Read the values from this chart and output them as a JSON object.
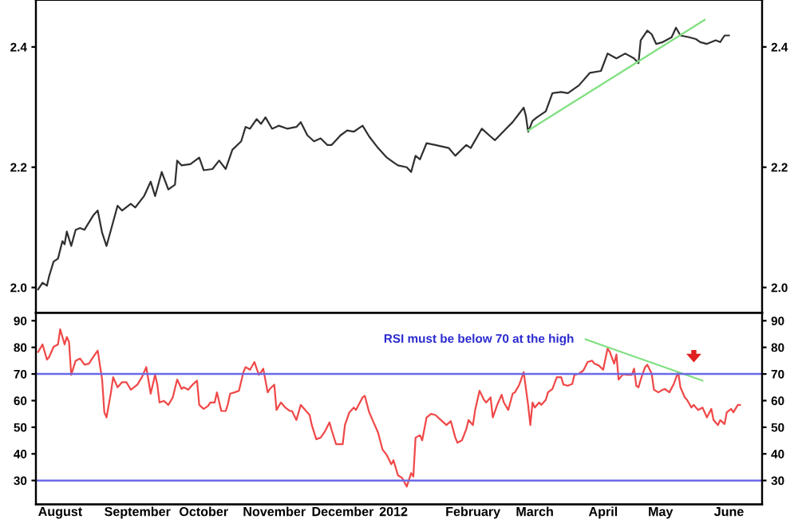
{
  "chart_data": [
    {
      "type": "line",
      "tick_labels": "y",
      "legend": false,
      "grid": false,
      "xlim": [
        "2011-07-30",
        "2012-06-23"
      ],
      "ylim": [
        1.958,
        2.478
      ],
      "yticks": [
        {
          "value": 2.0,
          "label": "2.0"
        },
        {
          "value": 2.2,
          "label": "2.2"
        },
        {
          "value": 2.4,
          "label": "2.4"
        }
      ],
      "y2lim": [
        1.958,
        2.478
      ],
      "y2ticks": [
        {
          "value": 2.0,
          "label": "2.0"
        },
        {
          "value": 2.2,
          "label": "2.2"
        },
        {
          "value": 2.4,
          "label": "2.4"
        }
      ],
      "series": [
        {
          "color": "#303030",
          "x": [
            "2011-07-31",
            "2011-08-02",
            "2011-08-04",
            "2011-08-05",
            "2011-08-07",
            "2011-08-09",
            "2011-08-11",
            "2011-08-12",
            "2011-08-13",
            "2011-08-15",
            "2011-08-17",
            "2011-08-19",
            "2011-08-21",
            "2011-08-25",
            "2011-08-27",
            "2011-08-29",
            "2011-08-31",
            "2011-09-02",
            "2011-09-05",
            "2011-09-07",
            "2011-09-11",
            "2011-09-13",
            "2011-09-17",
            "2011-09-20",
            "2011-09-22",
            "2011-09-25",
            "2011-09-28",
            "2011-10-01",
            "2011-10-02",
            "2011-10-04",
            "2011-10-08",
            "2011-10-12",
            "2011-10-14",
            "2011-10-18",
            "2011-10-21",
            "2011-10-24",
            "2011-10-27",
            "2011-10-31",
            "2011-11-02",
            "2011-11-04",
            "2011-11-07",
            "2011-11-09",
            "2011-11-11",
            "2011-11-14",
            "2011-11-17",
            "2011-11-21",
            "2011-11-25",
            "2011-11-27",
            "2011-11-30",
            "2011-12-03",
            "2011-12-06",
            "2011-12-09",
            "2011-12-11",
            "2011-12-15",
            "2011-12-18",
            "2011-12-21",
            "2011-12-25",
            "2011-12-28",
            "2012-01-01",
            "2012-01-05",
            "2012-01-08",
            "2012-01-10",
            "2012-01-14",
            "2012-01-16",
            "2012-01-18",
            "2012-01-20",
            "2012-01-23",
            "2012-01-27",
            "2012-02-02",
            "2012-02-05",
            "2012-02-10",
            "2012-02-12",
            "2012-02-17",
            "2012-02-21",
            "2012-02-23",
            "2012-02-28",
            "2012-03-02",
            "2012-03-07",
            "2012-03-08",
            "2012-03-09",
            "2012-03-11",
            "2012-03-13",
            "2012-03-17",
            "2012-03-20",
            "2012-03-24",
            "2012-03-27",
            "2012-04-01",
            "2012-04-06",
            "2012-04-11",
            "2012-04-14",
            "2012-04-18",
            "2012-04-22",
            "2012-04-26",
            "2012-04-28",
            "2012-04-29",
            "2012-05-02",
            "2012-05-04",
            "2012-05-06",
            "2012-05-09",
            "2012-05-13",
            "2012-05-15",
            "2012-05-17",
            "2012-05-21",
            "2012-05-24",
            "2012-05-26",
            "2012-05-29",
            "2012-06-02",
            "2012-06-04",
            "2012-06-06",
            "2012-06-08"
          ],
          "values": [
            1.997,
            2.008,
            2.003,
            2.019,
            2.043,
            2.048,
            2.077,
            2.072,
            2.093,
            2.069,
            2.096,
            2.099,
            2.096,
            2.12,
            2.128,
            2.091,
            2.069,
            2.096,
            2.136,
            2.128,
            2.139,
            2.133,
            2.152,
            2.176,
            2.152,
            2.192,
            2.163,
            2.171,
            2.211,
            2.203,
            2.205,
            2.216,
            2.195,
            2.197,
            2.211,
            2.197,
            2.229,
            2.243,
            2.267,
            2.264,
            2.28,
            2.272,
            2.283,
            2.264,
            2.269,
            2.264,
            2.267,
            2.275,
            2.253,
            2.243,
            2.248,
            2.237,
            2.237,
            2.253,
            2.261,
            2.259,
            2.269,
            2.251,
            2.232,
            2.216,
            2.208,
            2.203,
            2.2,
            2.192,
            2.219,
            2.213,
            2.24,
            2.237,
            2.232,
            2.219,
            2.237,
            2.232,
            2.264,
            2.251,
            2.245,
            2.264,
            2.275,
            2.299,
            2.285,
            2.259,
            2.277,
            2.283,
            2.293,
            2.323,
            2.325,
            2.323,
            2.336,
            2.357,
            2.36,
            2.389,
            2.381,
            2.389,
            2.381,
            2.373,
            2.411,
            2.427,
            2.421,
            2.405,
            2.408,
            2.416,
            2.432,
            2.419,
            2.416,
            2.413,
            2.408,
            2.405,
            2.411,
            2.408,
            2.419,
            2.419
          ]
        },
        {
          "color": "#80e080",
          "x": [
            "2012-03-09",
            "2012-05-28"
          ],
          "values": [
            2.261,
            2.445
          ]
        }
      ]
    },
    {
      "type": "line",
      "legend": false,
      "grid": false,
      "xlim": [
        "2011-07-30",
        "2012-06-23"
      ],
      "xticks": [
        {
          "value": "2011-08-10",
          "label": "August"
        },
        {
          "value": "2011-09-14",
          "label": "September"
        },
        {
          "value": "2011-10-14",
          "label": "October"
        },
        {
          "value": "2011-11-15",
          "label": "November"
        },
        {
          "value": "2011-12-16",
          "label": "December"
        },
        {
          "value": "2012-01-08",
          "label": "2012"
        },
        {
          "value": "2012-02-13",
          "label": "February"
        },
        {
          "value": "2012-03-12",
          "label": "March"
        },
        {
          "value": "2012-04-12",
          "label": "April"
        },
        {
          "value": "2012-05-08",
          "label": "May"
        },
        {
          "value": "2012-06-08",
          "label": "June"
        }
      ],
      "ylim": [
        21,
        93
      ],
      "yticks": [
        30,
        40,
        50,
        60,
        70,
        80,
        90
      ],
      "y2lim": [
        21,
        93
      ],
      "y2ticks": [
        30,
        40,
        50,
        60,
        70,
        80,
        90
      ],
      "ref_lines": [
        {
          "axis": "y",
          "value": 70,
          "color": "#6a6ae8"
        },
        {
          "axis": "y",
          "value": 30,
          "color": "#6a6ae8"
        }
      ],
      "annotations": [
        "RSI must be below 70 at the high"
      ],
      "series": [
        {
          "color": "#f04848",
          "x": [
            "2011-07-31",
            "2011-08-02",
            "2011-08-04",
            "2011-08-05",
            "2011-08-07",
            "2011-08-09",
            "2011-08-10",
            "2011-08-12",
            "2011-08-13",
            "2011-08-14",
            "2011-08-15",
            "2011-08-17",
            "2011-08-19",
            "2011-08-21",
            "2011-08-23",
            "2011-08-25",
            "2011-08-27",
            "2011-08-29",
            "2011-08-30",
            "2011-08-31",
            "2011-09-02",
            "2011-09-03",
            "2011-09-05",
            "2011-09-07",
            "2011-09-09",
            "2011-09-11",
            "2011-09-14",
            "2011-09-16",
            "2011-09-18",
            "2011-09-20",
            "2011-09-22",
            "2011-09-23",
            "2011-09-24",
            "2011-09-26",
            "2011-09-28",
            "2011-09-30",
            "2011-10-02",
            "2011-10-04",
            "2011-10-05",
            "2011-10-07",
            "2011-10-09",
            "2011-10-11",
            "2011-10-12",
            "2011-10-14",
            "2011-10-16",
            "2011-10-17",
            "2011-10-19",
            "2011-10-20",
            "2011-10-22",
            "2011-10-24",
            "2011-10-25",
            "2011-10-26",
            "2011-10-28",
            "2011-10-30",
            "2011-11-01",
            "2011-11-02",
            "2011-11-04",
            "2011-11-06",
            "2011-11-08",
            "2011-11-09",
            "2011-11-10",
            "2011-11-12",
            "2011-11-13",
            "2011-11-15",
            "2011-11-16",
            "2011-11-18",
            "2011-11-20",
            "2011-11-22",
            "2011-11-23",
            "2011-11-25",
            "2011-11-27",
            "2011-11-29",
            "2011-12-01",
            "2011-12-02",
            "2011-12-04",
            "2011-12-06",
            "2011-12-08",
            "2011-12-10",
            "2011-12-11",
            "2011-12-13",
            "2011-12-16",
            "2011-12-17",
            "2011-12-19",
            "2011-12-21",
            "2011-12-22",
            "2011-12-25",
            "2011-12-26",
            "2011-12-28",
            "2011-12-30",
            "2012-01-01",
            "2012-01-03",
            "2012-01-05",
            "2012-01-07",
            "2012-01-08",
            "2012-01-10",
            "2012-01-12",
            "2012-01-14",
            "2012-01-16",
            "2012-01-17",
            "2012-01-18",
            "2012-01-20",
            "2012-01-21",
            "2012-01-23",
            "2012-01-25",
            "2012-01-27",
            "2012-01-30",
            "2012-02-01",
            "2012-02-03",
            "2012-02-05",
            "2012-02-06",
            "2012-02-08",
            "2012-02-10",
            "2012-02-11",
            "2012-02-13",
            "2012-02-14",
            "2012-02-16",
            "2012-02-18",
            "2012-02-19",
            "2012-02-21",
            "2012-02-22",
            "2012-02-24",
            "2012-02-26",
            "2012-02-27",
            "2012-02-29",
            "2012-03-02",
            "2012-03-03",
            "2012-03-05",
            "2012-03-07",
            "2012-03-09",
            "2012-03-10",
            "2012-03-11",
            "2012-03-12",
            "2012-03-14",
            "2012-03-15",
            "2012-03-17",
            "2012-03-18",
            "2012-03-20",
            "2012-03-22",
            "2012-03-24",
            "2012-03-25",
            "2012-03-27",
            "2012-03-29",
            "2012-03-30",
            "2012-04-01",
            "2012-04-03",
            "2012-04-05",
            "2012-04-07",
            "2012-04-08",
            "2012-04-10",
            "2012-04-12",
            "2012-04-14",
            "2012-04-15",
            "2012-04-17",
            "2012-04-18",
            "2012-04-19",
            "2012-04-21",
            "2012-04-23",
            "2012-04-25",
            "2012-04-26",
            "2012-04-27",
            "2012-04-28",
            "2012-04-29",
            "2012-05-01",
            "2012-05-02",
            "2012-05-04",
            "2012-05-05",
            "2012-05-07",
            "2012-05-09",
            "2012-05-10",
            "2012-05-12",
            "2012-05-14",
            "2012-05-16",
            "2012-05-17",
            "2012-05-19",
            "2012-05-20",
            "2012-05-22",
            "2012-05-23",
            "2012-05-25",
            "2012-05-27",
            "2012-05-28",
            "2012-05-29",
            "2012-05-31",
            "2012-06-01",
            "2012-06-03",
            "2012-06-04",
            "2012-06-06",
            "2012-06-07",
            "2012-06-09",
            "2012-06-10",
            "2012-06-12",
            "2012-06-13"
          ],
          "values": [
            78.3,
            81.1,
            75.4,
            76.4,
            80.2,
            81.1,
            86.8,
            81.1,
            83.9,
            82.0,
            69.7,
            75.0,
            75.8,
            73.5,
            73.9,
            76.4,
            78.8,
            67.9,
            55.6,
            53.7,
            63.1,
            68.8,
            65.0,
            66.9,
            66.9,
            64.1,
            66.0,
            68.8,
            72.6,
            62.6,
            69.7,
            66.0,
            59.3,
            59.9,
            58.4,
            61.2,
            67.9,
            64.4,
            65.0,
            64.1,
            66.0,
            67.5,
            58.4,
            56.9,
            58.0,
            59.3,
            59.3,
            63.1,
            56.1,
            56.1,
            58.8,
            62.6,
            63.1,
            63.7,
            70.7,
            72.6,
            71.6,
            74.5,
            69.7,
            70.7,
            72.0,
            63.1,
            64.4,
            66.0,
            56.5,
            59.3,
            57.4,
            56.1,
            56.1,
            52.7,
            58.4,
            56.5,
            54.6,
            50.8,
            45.5,
            46.1,
            48.5,
            51.8,
            48.9,
            43.6,
            43.6,
            50.8,
            55.6,
            57.4,
            56.5,
            61.2,
            61.8,
            55.6,
            51.8,
            48.0,
            41.7,
            39.5,
            36.1,
            37.6,
            32.0,
            30.9,
            27.7,
            32.8,
            31.5,
            46.1,
            47.0,
            45.1,
            53.7,
            55.0,
            54.6,
            52.3,
            50.8,
            52.3,
            46.1,
            44.2,
            45.1,
            49.3,
            52.7,
            50.8,
            56.5,
            63.7,
            60.3,
            59.3,
            61.2,
            53.7,
            58.4,
            62.2,
            59.3,
            56.5,
            62.6,
            63.1,
            66.0,
            70.7,
            58.4,
            50.8,
            59.3,
            57.4,
            59.3,
            58.4,
            60.3,
            63.1,
            64.4,
            68.8,
            68.8,
            66.0,
            65.6,
            66.3,
            69.7,
            70.1,
            71.3,
            74.5,
            75.0,
            73.9,
            73.2,
            71.6,
            79.6,
            78.3,
            73.9,
            77.3,
            67.9,
            69.9,
            69.7,
            69.7,
            72.0,
            65.6,
            65.0,
            67.9,
            72.6,
            73.5,
            70.1,
            64.1,
            63.1,
            64.1,
            64.4,
            63.1,
            66.3,
            70.7,
            65.0,
            61.2,
            60.3,
            57.4,
            58.4,
            56.5,
            57.4,
            55.6,
            53.7,
            56.9,
            52.7,
            50.8,
            52.7,
            51.2,
            55.6,
            56.9,
            55.6,
            58.4,
            58.4
          ]
        },
        {
          "color": "#80e080",
          "x": [
            "2012-04-04",
            "2012-05-27"
          ],
          "values": [
            83.0,
            67.5
          ]
        }
      ]
    }
  ]
}
